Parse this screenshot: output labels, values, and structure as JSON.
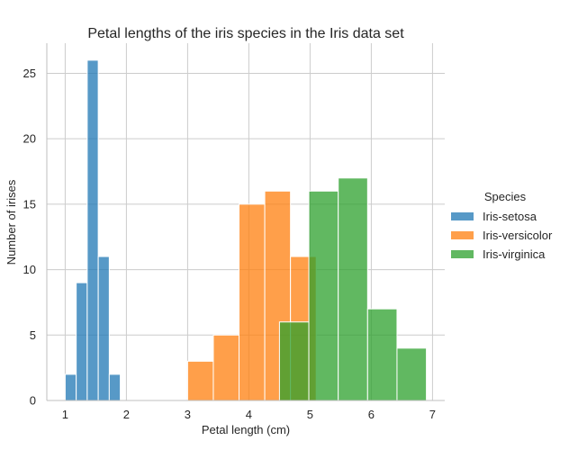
{
  "chart_data": {
    "type": "bar",
    "title": "Petal lengths of the iris species in the Iris data set",
    "xlabel": "Petal length (cm)",
    "ylabel": "Number of irises",
    "xlim": [
      0.7,
      7.2
    ],
    "ylim": [
      0,
      27.3
    ],
    "xticks": [
      1,
      2,
      3,
      4,
      5,
      6,
      7
    ],
    "yticks": [
      0,
      5,
      10,
      15,
      20,
      25
    ],
    "grid": true,
    "legend": {
      "title": "Species",
      "placement": "right"
    },
    "series": [
      {
        "name": "Iris-setosa",
        "color": "#1f77b4",
        "bins": [
          {
            "x0": 1.0,
            "x1": 1.18,
            "count": 2
          },
          {
            "x0": 1.18,
            "x1": 1.36,
            "count": 9
          },
          {
            "x0": 1.36,
            "x1": 1.54,
            "count": 26
          },
          {
            "x0": 1.54,
            "x1": 1.72,
            "count": 11
          },
          {
            "x0": 1.72,
            "x1": 1.9,
            "count": 2
          }
        ]
      },
      {
        "name": "Iris-versicolor",
        "color": "#ff7f0e",
        "bins": [
          {
            "x0": 3.0,
            "x1": 3.42,
            "count": 3
          },
          {
            "x0": 3.42,
            "x1": 3.84,
            "count": 5
          },
          {
            "x0": 3.84,
            "x1": 4.26,
            "count": 15
          },
          {
            "x0": 4.26,
            "x1": 4.68,
            "count": 16
          },
          {
            "x0": 4.68,
            "x1": 5.1,
            "count": 11
          }
        ]
      },
      {
        "name": "Iris-virginica",
        "color": "#2ca02c",
        "bins": [
          {
            "x0": 4.5,
            "x1": 4.98,
            "count": 6
          },
          {
            "x0": 4.98,
            "x1": 5.46,
            "count": 16
          },
          {
            "x0": 5.46,
            "x1": 5.94,
            "count": 17
          },
          {
            "x0": 5.94,
            "x1": 6.42,
            "count": 7
          },
          {
            "x0": 6.42,
            "x1": 6.9,
            "count": 4
          }
        ]
      }
    ]
  }
}
